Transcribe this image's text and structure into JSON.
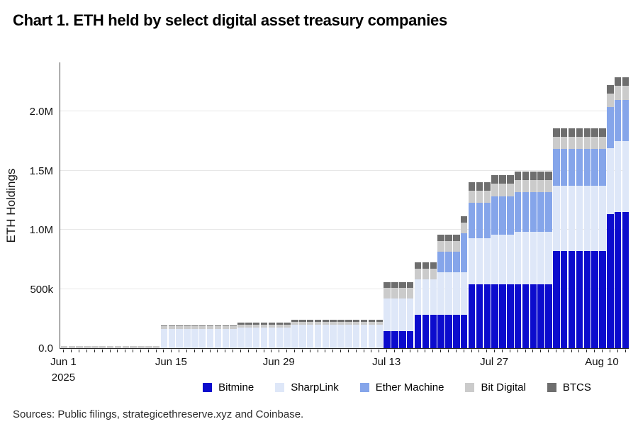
{
  "page": {
    "title": "Chart 1. ETH held by select digital asset treasury companies",
    "source_note": "Sources: Public filings, strategicethreserve.xyz and Coinbase."
  },
  "chart_data": {
    "type": "bar",
    "stacked": true,
    "title": "Chart 1. ETH held by select digital asset treasury companies",
    "xlabel": "",
    "ylabel": "ETH Holdings",
    "x_start": "Jun 1, 2025",
    "x_end": "Aug 13, 2025",
    "x_frequency": "daily",
    "values_unit": "thousand ETH",
    "ylim_thousands": [
      0,
      2420
    ],
    "grid": "horizontal",
    "legend_position": "bottom",
    "series_order": [
      "Bitmine",
      "SharpLink",
      "Ether Machine",
      "Bit Digital",
      "BTCS"
    ],
    "series_colors": {
      "Bitmine": "#0c0ccd",
      "SharpLink": "#dee7f8",
      "Ether Machine": "#85a5ea",
      "Bit Digital": "#cbcbcb",
      "BTCS": "#6e6e6e"
    },
    "axis_color": "#333333",
    "grid_color": "#e7e7e7",
    "y_ticks": [
      {
        "thousands": 0,
        "label": "0.0"
      },
      {
        "thousands": 500,
        "label": "500k"
      },
      {
        "thousands": 1000,
        "label": "1.0M"
      },
      {
        "thousands": 1500,
        "label": "1.5M"
      },
      {
        "thousands": 2000,
        "label": "2.0M"
      }
    ],
    "x_ticks": [
      {
        "day_index": 0,
        "label": "Jun 1",
        "sublabel": "2025"
      },
      {
        "day_index": 14,
        "label": "Jun 15",
        "sublabel": ""
      },
      {
        "day_index": 28,
        "label": "Jun 29",
        "sublabel": ""
      },
      {
        "day_index": 42,
        "label": "Jul 13",
        "sublabel": ""
      },
      {
        "day_index": 56,
        "label": "Jul 27",
        "sublabel": ""
      },
      {
        "day_index": 70,
        "label": "Aug 10",
        "sublabel": ""
      }
    ],
    "daily_runs": [
      {
        "days": 13,
        "dates": "Jun 1–13",
        "values": [
          0,
          0,
          0,
          20,
          0
        ]
      },
      {
        "days": 10,
        "dates": "Jun 14–23",
        "values": [
          0,
          162,
          0,
          24,
          8
        ]
      },
      {
        "days": 7,
        "dates": "Jun 24–30",
        "values": [
          0,
          176,
          0,
          24,
          18
        ]
      },
      {
        "days": 12,
        "dates": "Jul 1–12",
        "values": [
          0,
          196,
          0,
          24,
          18
        ]
      },
      {
        "days": 4,
        "dates": "Jul 13–16",
        "values": [
          145,
          275,
          0,
          90,
          45
        ]
      },
      {
        "days": 3,
        "dates": "Jul 17–19",
        "values": [
          280,
          300,
          0,
          90,
          55
        ]
      },
      {
        "days": 3,
        "dates": "Jul 20–22",
        "values": [
          280,
          360,
          175,
          90,
          55
        ]
      },
      {
        "days": 1,
        "dates": "Jul 23",
        "values": [
          280,
          360,
          330,
          90,
          55
        ]
      },
      {
        "days": 3,
        "dates": "Jul 24–26",
        "values": [
          540,
          390,
          300,
          100,
          70
        ]
      },
      {
        "days": 3,
        "dates": "Jul 27–29",
        "values": [
          540,
          420,
          325,
          105,
          70
        ]
      },
      {
        "days": 5,
        "dates": "Jul 30–Aug 3",
        "values": [
          540,
          440,
          335,
          105,
          70
        ]
      },
      {
        "days": 7,
        "dates": "Aug 4–10",
        "values": [
          820,
          550,
          315,
          100,
          75
        ]
      },
      {
        "days": 1,
        "dates": "Aug 11",
        "values": [
          1130,
          560,
          345,
          115,
          70
        ]
      },
      {
        "days": 2,
        "dates": "Aug 12–13",
        "values": [
          1150,
          600,
          345,
          120,
          75
        ]
      }
    ]
  }
}
